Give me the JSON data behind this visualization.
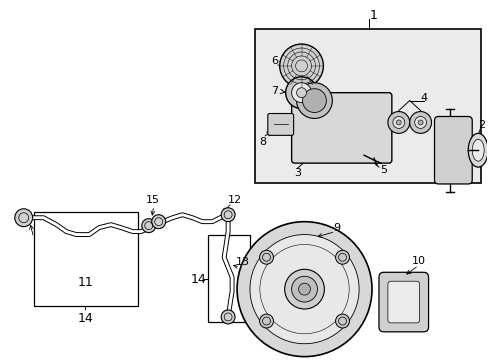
{
  "bg_color": "#ffffff",
  "line_color": "#000000",
  "gray_fill": "#c8c8c8",
  "light_gray": "#e0e0e0",
  "fig_width": 4.89,
  "fig_height": 3.6,
  "dpi": 100
}
